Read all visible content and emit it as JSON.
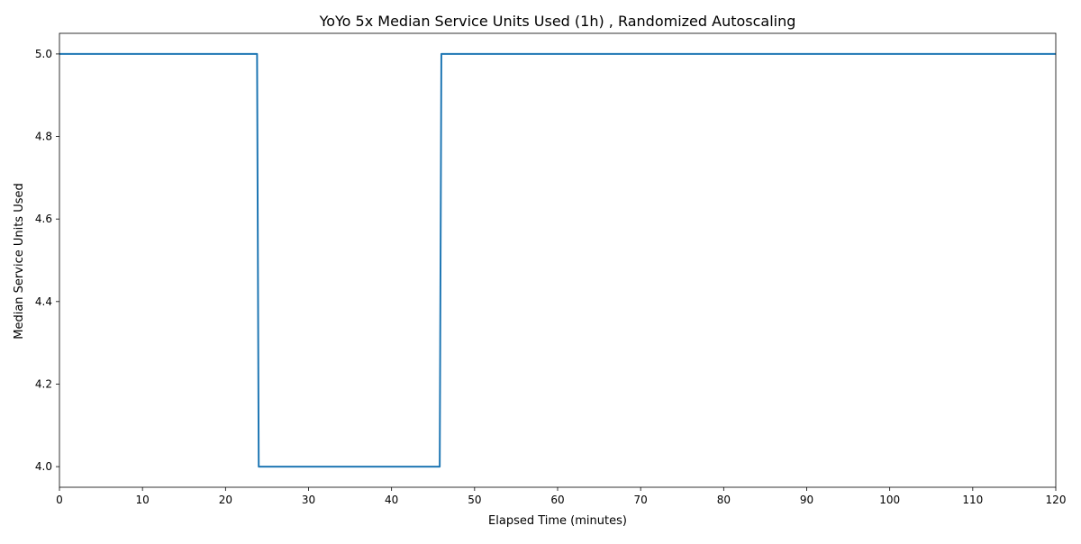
{
  "chart_data": {
    "type": "line",
    "title": "YoYo 5x Median Service Units Used (1h) , Randomized Autoscaling",
    "xlabel": "Elapsed Time (minutes)",
    "ylabel": "Median Service Units Used",
    "xlim": [
      0,
      120
    ],
    "ylim": [
      3.95,
      5.05
    ],
    "x_ticks": [
      0,
      10,
      20,
      30,
      40,
      50,
      60,
      70,
      80,
      90,
      100,
      110,
      120
    ],
    "x_tick_labels": [
      "0",
      "10",
      "20",
      "30",
      "40",
      "50",
      "60",
      "70",
      "80",
      "90",
      "100",
      "110",
      "120"
    ],
    "y_ticks": [
      4.0,
      4.2,
      4.4,
      4.6,
      4.8,
      5.0
    ],
    "y_tick_labels": [
      "4.0",
      "4.2",
      "4.4",
      "4.6",
      "4.8",
      "5.0"
    ],
    "grid": false,
    "legend": "none",
    "series": [
      {
        "color": "#1f77b4",
        "x": [
          0,
          23.8,
          24.0,
          45.8,
          46.0,
          120
        ],
        "y": [
          5.0,
          5.0,
          4.0,
          4.0,
          5.0,
          5.0
        ]
      }
    ]
  }
}
